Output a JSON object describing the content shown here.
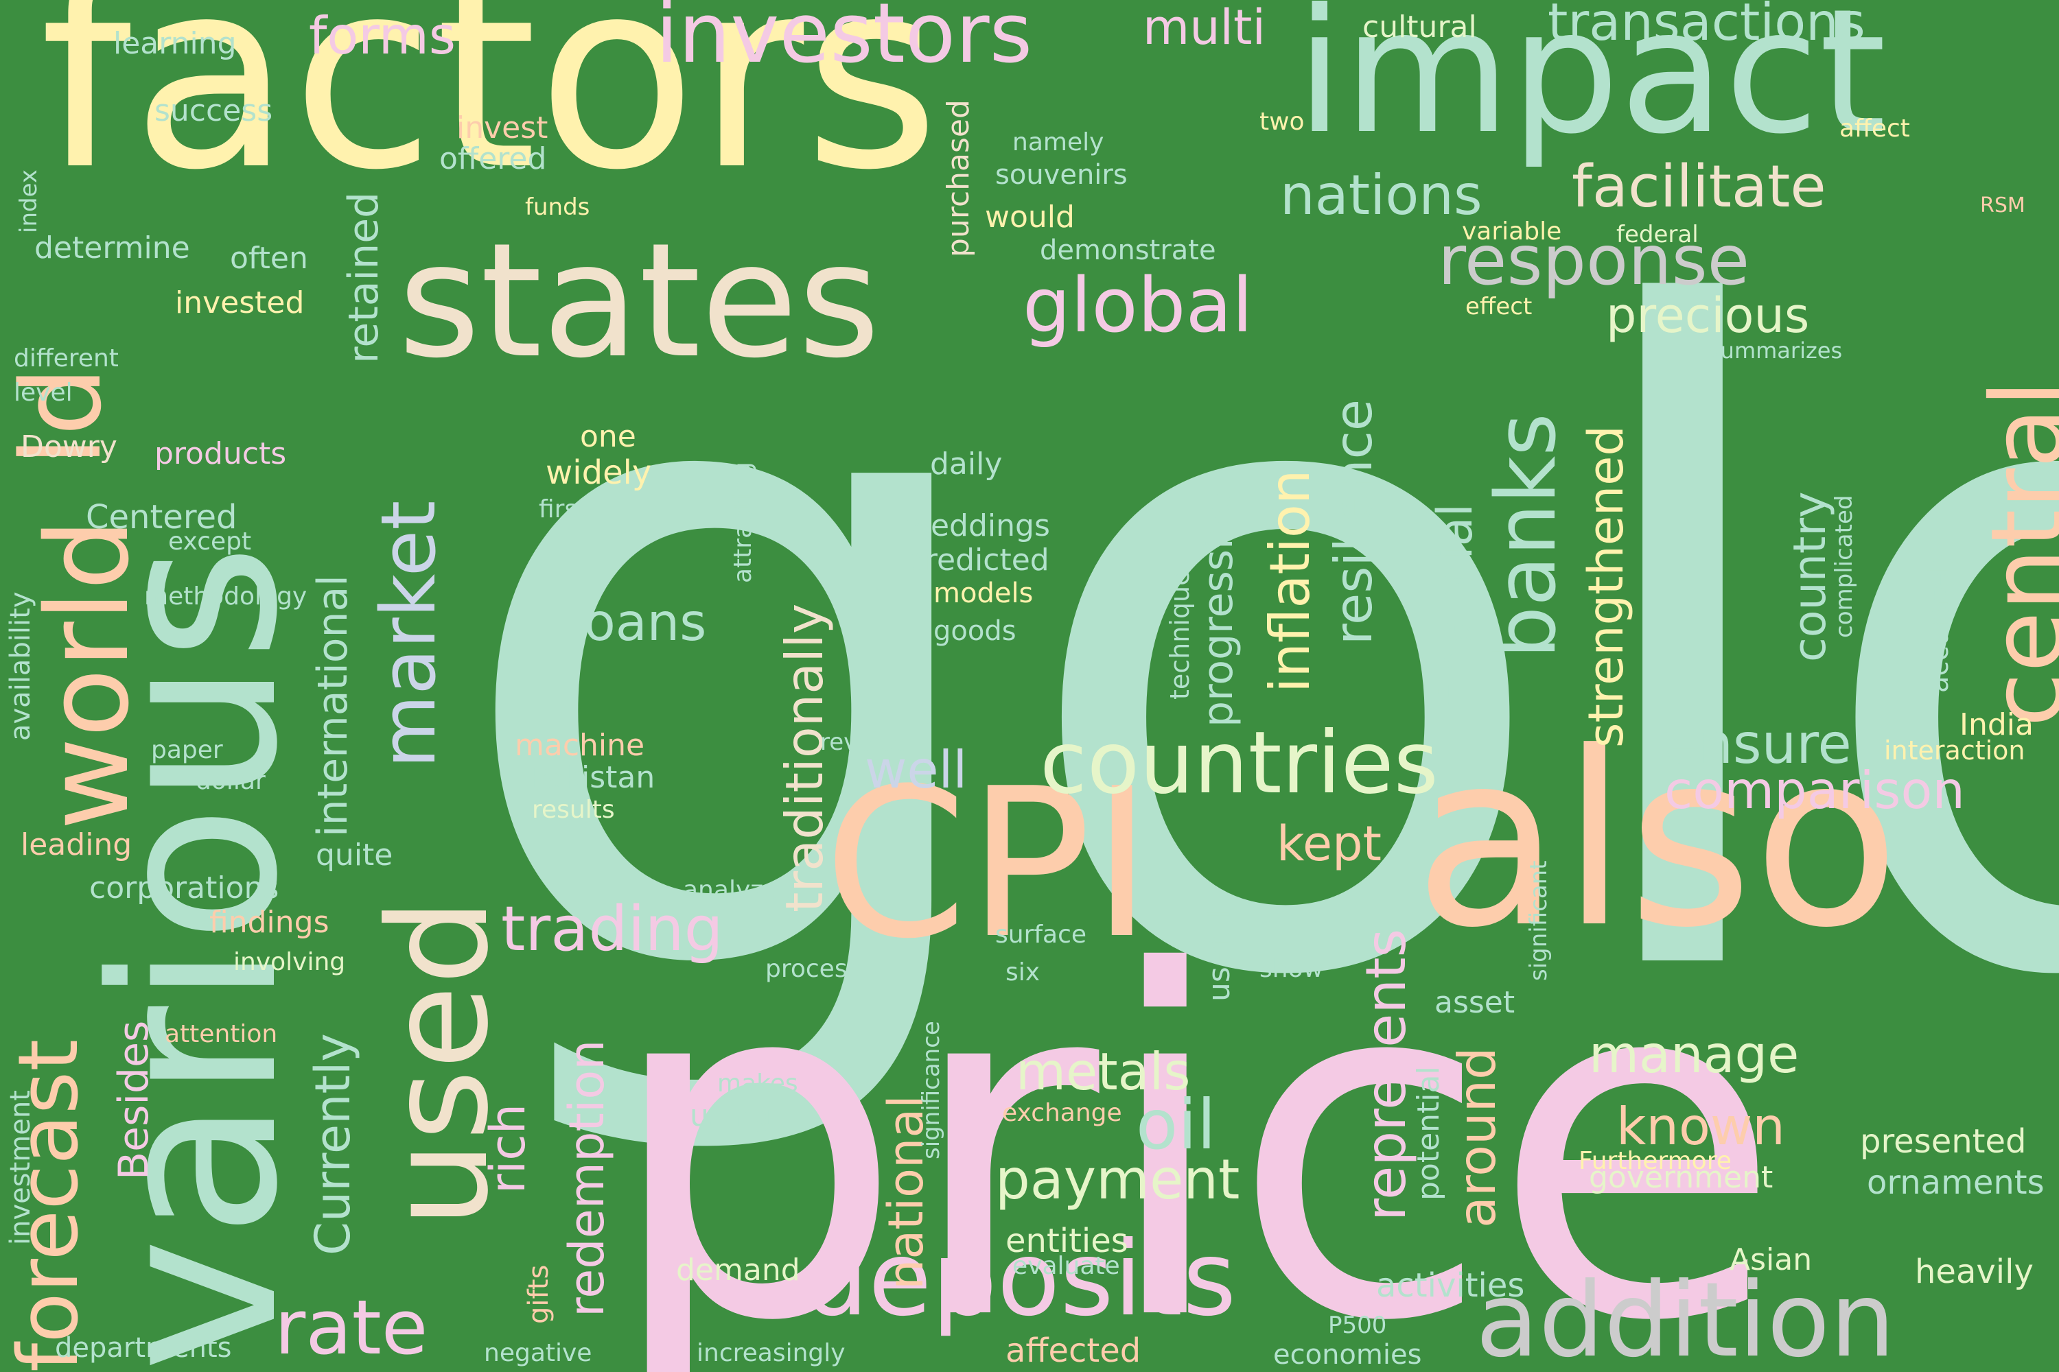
{
  "palette": {
    "background": "#3c8e40",
    "mint": "#b3e2cd",
    "yellow": "#fff2ae",
    "pink": "#f4cae4",
    "peach": "#fdcdac",
    "cream": "#f1e2cc",
    "lime": "#e6f5c9",
    "blue": "#cbd5e8",
    "grey": "#cccccc"
  },
  "words": {
    "gold": "gold",
    "factors": "factors",
    "impact": "impact",
    "price": "price",
    "various": "various",
    "states": "states",
    "world": "world",
    "used": "used",
    "cpi": "CPI",
    "also": "also",
    "central": "central",
    "id": "ld",
    "investors": "investors",
    "countries": "countries",
    "deposits": "deposits",
    "addition": "addition",
    "banks": "banks",
    "response": "response",
    "global": "global",
    "market": "market",
    "forecast": "forecast",
    "rate": "rate",
    "trading": "trading",
    "nations": "nations",
    "facilitate": "facilitate",
    "transactions": "transactions",
    "forms": "forms",
    "multi": "multi",
    "precious": "precious",
    "ensure": "ensure",
    "comparison": "comparison",
    "manage": "manage",
    "known": "known",
    "presented": "presented",
    "ornaments": "ornaments",
    "heavily": "heavily",
    "india": "India",
    "interaction": "interaction",
    "metals": "metals",
    "oil": "oil",
    "payment": "payment",
    "well": "well",
    "loans": "loans",
    "entities": "entities",
    "evaluate": "evaluate",
    "kept": "kept",
    "represents": "represents",
    "around": "around",
    "inflation": "inflation",
    "resilience": "resilience",
    "financial": "financial",
    "strengthened": "strengthened",
    "country": "country",
    "progressive": "progressive",
    "traditionally": "traditionally",
    "national": "national",
    "redemption": "redemption",
    "rich": "rich",
    "currently": "Currently",
    "besides": "Besides",
    "international": "international",
    "retained": "retained",
    "purchased": "purchased",
    "attracting": "attracting",
    "significance": "significance",
    "techniques": "techniques",
    "useful": "useful",
    "potential": "potential",
    "significant": "significant",
    "accurately": "accurately",
    "complicated": "complicated",
    "availability": "availability",
    "investment": "investment",
    "gifts": "gifts",
    "index": "index",
    "learning": "learning",
    "success": "success",
    "invest": "invest",
    "offered": "offered",
    "funds": "funds",
    "determine": "determine",
    "often": "often",
    "invested": "invested",
    "different": "different",
    "level": "level",
    "dowry": "Dowry",
    "products": "products",
    "centered": "Centered",
    "except": "except",
    "methodology": "methodology",
    "paper": "paper",
    "dollar": "dollar",
    "leading": "leading",
    "quite": "quite",
    "corporations": "corporations",
    "findings": "findings",
    "involving": "involving",
    "attention": "attention",
    "departments": "departments",
    "negative": "negative",
    "namely": "namely",
    "souvenirs": "souvenirs",
    "would": "would",
    "demonstrate": "demonstrate",
    "cultural": "cultural",
    "two": "two",
    "affect": "affect",
    "rsm": "RSM",
    "variable": "variable",
    "federal": "federal",
    "effect": "effect",
    "summarizes": "summarizes",
    "one": "one",
    "widely": "widely",
    "first": "first",
    "daily": "daily",
    "weddings": "weddings",
    "predicted": "predicted",
    "models": "models",
    "goods": "goods",
    "machine": "machine",
    "pakistan": "Pakistan",
    "results": "results",
    "reverse": "reverse",
    "analyzes": "analyzes",
    "surface": "surface",
    "process": "process",
    "six": "six",
    "show": "show",
    "makes": "makes",
    "using": "using",
    "exchange": "exchange",
    "demand": "demand",
    "increasingly": "increasingly",
    "affected": "affected",
    "economies": "economies",
    "p500": "P500",
    "activities": "activities",
    "asset": "asset",
    "furthermore": "Furthermore",
    "government": "government",
    "asian": "Asian"
  }
}
